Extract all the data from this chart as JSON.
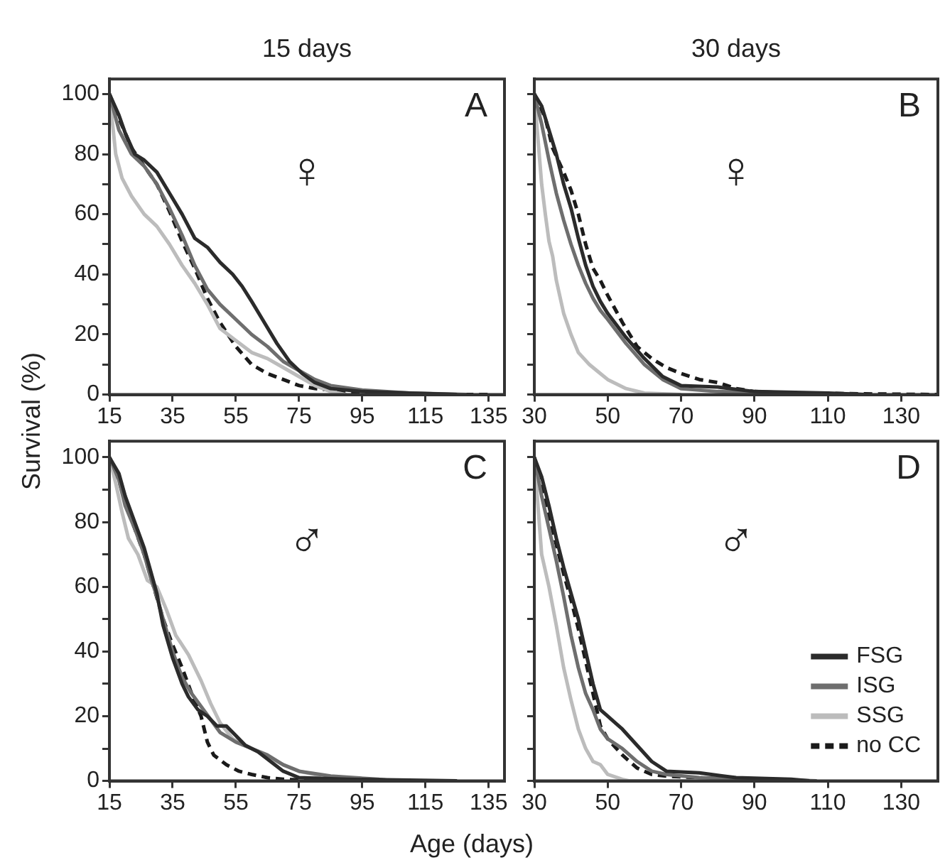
{
  "chart_data": [
    {
      "type": "line",
      "title": "15 days",
      "ylabel": "Survival (%)",
      "annotations": [
        "A",
        "♀"
      ],
      "xlim": [
        15,
        140
      ],
      "xticks": [
        15,
        35,
        55,
        75,
        95,
        115,
        135
      ],
      "ylim": [
        0,
        105
      ],
      "yticks": [
        0,
        {
          "value": 10,
          "label": null
        },
        20,
        {
          "value": 30,
          "label": null
        },
        40,
        {
          "value": 50,
          "label": null
        },
        60,
        {
          "value": 70,
          "label": null
        },
        80,
        {
          "value": 90,
          "label": null
        },
        100
      ],
      "grid": false,
      "marker": "none",
      "series": [
        {
          "color": "#2b2b2b",
          "line_style": "solid",
          "x": [
            15,
            18,
            20,
            23,
            26,
            30,
            34,
            38,
            42,
            46,
            50,
            54,
            57,
            60,
            64,
            68,
            72,
            76,
            80,
            85,
            95,
            110,
            125
          ],
          "values": [
            100,
            93,
            87,
            80,
            78,
            74,
            67,
            60,
            52,
            49,
            44,
            40,
            36,
            31,
            24,
            17,
            11,
            7,
            4,
            2,
            1,
            0.5,
            0
          ]
        },
        {
          "color": "#6e6e6e",
          "line_style": "solid",
          "x": [
            15,
            18,
            22,
            26,
            30,
            34,
            38,
            42,
            46,
            50,
            55,
            60,
            65,
            70,
            75,
            80,
            85,
            95,
            110,
            128
          ],
          "values": [
            100,
            88,
            80,
            76,
            70,
            62,
            53,
            43,
            35,
            30,
            25,
            20,
            16,
            11,
            8,
            5,
            3,
            1.5,
            0.5,
            0
          ]
        },
        {
          "color": "#bcbcbc",
          "line_style": "solid",
          "x": [
            15,
            17,
            19,
            22,
            26,
            30,
            34,
            38,
            42,
            46,
            50,
            55,
            60,
            65,
            70,
            75,
            80,
            85,
            90
          ],
          "values": [
            100,
            80,
            72,
            66,
            60,
            56,
            50,
            43,
            37,
            30,
            22,
            18,
            14,
            12,
            9,
            6,
            3,
            1,
            0
          ]
        },
        {
          "color": "#1a1a1a",
          "line_style": "dashed",
          "x": [
            15,
            18,
            22,
            26,
            30,
            34,
            38,
            42,
            46,
            50,
            55,
            60,
            65,
            70,
            75,
            80,
            90,
            100,
            115,
            135
          ],
          "values": [
            100,
            92,
            82,
            76,
            70,
            61,
            51,
            42,
            32,
            24,
            16,
            10,
            7,
            5,
            3,
            2,
            1,
            0.5,
            0,
            0
          ]
        }
      ]
    },
    {
      "type": "line",
      "title": "30 days",
      "annotations": [
        "B",
        "♀"
      ],
      "xlim": [
        30,
        140
      ],
      "xticks": [
        30,
        50,
        70,
        90,
        110,
        130
      ],
      "ylim": [
        0,
        105
      ],
      "yticks": [
        0,
        10,
        20,
        30,
        40,
        50,
        60,
        70,
        80,
        90,
        100
      ],
      "tick_labels": "x",
      "grid": false,
      "marker": "none",
      "series": [
        {
          "color": "#2b2b2b",
          "line_style": "solid",
          "x": [
            30,
            32,
            34,
            36,
            38,
            40,
            42,
            44,
            46,
            48,
            50,
            55,
            60,
            65,
            70,
            80,
            90,
            110,
            120
          ],
          "values": [
            100,
            96,
            88,
            80,
            70,
            62,
            52,
            43,
            36,
            31,
            27,
            19,
            12,
            6,
            3,
            2.5,
            1,
            0.5,
            0
          ]
        },
        {
          "color": "#6e6e6e",
          "line_style": "solid",
          "x": [
            30,
            32,
            34,
            36,
            38,
            40,
            42,
            44,
            46,
            48,
            50,
            55,
            60,
            65,
            70,
            80,
            100,
            120
          ],
          "values": [
            100,
            90,
            78,
            67,
            58,
            50,
            43,
            37,
            32,
            28,
            25,
            17,
            10,
            5,
            2,
            1,
            0.5,
            0
          ]
        },
        {
          "color": "#bcbcbc",
          "line_style": "solid",
          "x": [
            30,
            31,
            32,
            33,
            34,
            35,
            36,
            38,
            40,
            42,
            45,
            48,
            50,
            55,
            60,
            70
          ],
          "values": [
            100,
            85,
            70,
            60,
            51,
            46,
            38,
            27,
            20,
            14,
            10,
            7,
            5,
            2,
            0.5,
            0
          ]
        },
        {
          "color": "#1a1a1a",
          "line_style": "dashed",
          "x": [
            30,
            33,
            35,
            38,
            40,
            42,
            44,
            46,
            48,
            50,
            54,
            58,
            62,
            66,
            70,
            75,
            80,
            85,
            90,
            100,
            140
          ],
          "values": [
            100,
            92,
            82,
            74,
            68,
            60,
            50,
            42,
            38,
            33,
            24,
            16,
            12,
            9,
            7,
            5,
            4,
            2,
            1,
            0.5,
            0
          ]
        }
      ]
    },
    {
      "type": "line",
      "xlabel": "Age (days)",
      "annotations": [
        "C",
        "♂"
      ],
      "xlim": [
        15,
        140
      ],
      "xticks": [
        15,
        35,
        55,
        75,
        95,
        115,
        135
      ],
      "ylim": [
        0,
        105
      ],
      "yticks": [
        0,
        {
          "value": 10,
          "label": null
        },
        20,
        {
          "value": 30,
          "label": null
        },
        40,
        {
          "value": 50,
          "label": null
        },
        60,
        {
          "value": 70,
          "label": null
        },
        80,
        {
          "value": 90,
          "label": null
        },
        100
      ],
      "grid": false,
      "marker": "none",
      "series": [
        {
          "color": "#2b2b2b",
          "line_style": "solid",
          "x": [
            15,
            18,
            20,
            23,
            26,
            28,
            30,
            32,
            35,
            38,
            40,
            43,
            46,
            49,
            52,
            55,
            58,
            62,
            66,
            70,
            75,
            90,
            125
          ],
          "values": [
            100,
            95,
            88,
            80,
            72,
            65,
            58,
            48,
            38,
            30,
            26,
            22,
            20,
            17,
            17,
            14,
            11,
            9,
            6,
            3,
            1,
            0.5,
            0
          ]
        },
        {
          "color": "#6e6e6e",
          "line_style": "solid",
          "x": [
            15,
            18,
            20,
            23,
            26,
            28,
            30,
            32,
            35,
            38,
            41,
            44,
            47,
            50,
            55,
            60,
            65,
            70,
            75,
            85,
            100,
            105
          ],
          "values": [
            100,
            93,
            85,
            78,
            70,
            63,
            57,
            50,
            40,
            32,
            27,
            23,
            19,
            15,
            12,
            10,
            8,
            5,
            3,
            1.5,
            0.5,
            0
          ]
        },
        {
          "color": "#bcbcbc",
          "line_style": "solid",
          "x": [
            15,
            17,
            19,
            21,
            24,
            27,
            30,
            33,
            36,
            40,
            44,
            47,
            50,
            54,
            58,
            62,
            66,
            70,
            75,
            80,
            83
          ],
          "values": [
            100,
            92,
            83,
            75,
            70,
            62,
            60,
            53,
            45,
            39,
            31,
            24,
            18,
            13,
            11,
            9,
            7,
            5,
            3,
            2,
            0
          ]
        },
        {
          "color": "#1a1a1a",
          "line_style": "dashed",
          "x": [
            15,
            18,
            20,
            23,
            26,
            29,
            32,
            35,
            38,
            41,
            44,
            46,
            48,
            52,
            56,
            60,
            65,
            70,
            85
          ],
          "values": [
            100,
            93,
            86,
            78,
            70,
            60,
            50,
            42,
            35,
            27,
            20,
            12,
            8,
            5,
            3,
            2,
            1,
            0.5,
            0
          ]
        }
      ]
    },
    {
      "type": "line",
      "annotations": [
        "D",
        "♂"
      ],
      "xlim": [
        30,
        140
      ],
      "xticks": [
        30,
        50,
        70,
        90,
        110,
        130
      ],
      "ylim": [
        0,
        105
      ],
      "yticks": [
        0,
        10,
        20,
        30,
        40,
        50,
        60,
        70,
        80,
        90,
        100
      ],
      "tick_labels": "x",
      "grid": false,
      "marker": "none",
      "legend": "bottom right",
      "series": [
        {
          "name": "FSG",
          "color": "#2b2b2b",
          "line_style": "solid",
          "x": [
            30,
            32,
            34,
            36,
            38,
            40,
            42,
            44,
            46,
            48,
            50,
            54,
            58,
            62,
            66,
            75,
            85,
            100,
            105
          ],
          "values": [
            100,
            94,
            85,
            75,
            66,
            58,
            50,
            40,
            30,
            22,
            20,
            16,
            11,
            6,
            3,
            2.5,
            1,
            0.5,
            0
          ]
        },
        {
          "name": "ISG",
          "color": "#6e6e6e",
          "line_style": "solid",
          "x": [
            30,
            32,
            34,
            36,
            38,
            40,
            42,
            44,
            46,
            48,
            50,
            54,
            58,
            62,
            66,
            75,
            90,
            107
          ],
          "values": [
            100,
            88,
            78,
            68,
            57,
            45,
            35,
            27,
            22,
            16,
            13,
            10,
            6,
            3,
            2,
            1,
            0.5,
            0
          ]
        },
        {
          "name": "SSG",
          "color": "#bcbcbc",
          "line_style": "solid",
          "x": [
            30,
            31,
            32,
            34,
            36,
            38,
            40,
            42,
            44,
            46,
            48,
            50,
            54,
            56,
            84
          ],
          "values": [
            100,
            85,
            70,
            60,
            48,
            35,
            25,
            16,
            10,
            6,
            5,
            2,
            0.5,
            0,
            0
          ]
        },
        {
          "name": "no CC",
          "color": "#1a1a1a",
          "line_style": "dashed",
          "x": [
            30,
            32,
            34,
            36,
            38,
            40,
            42,
            44,
            46,
            48,
            50,
            54,
            58,
            62,
            66,
            75,
            86
          ],
          "values": [
            100,
            90,
            82,
            73,
            64,
            56,
            47,
            37,
            27,
            17,
            13,
            8,
            4,
            2,
            1.5,
            1,
            0
          ]
        }
      ]
    }
  ]
}
